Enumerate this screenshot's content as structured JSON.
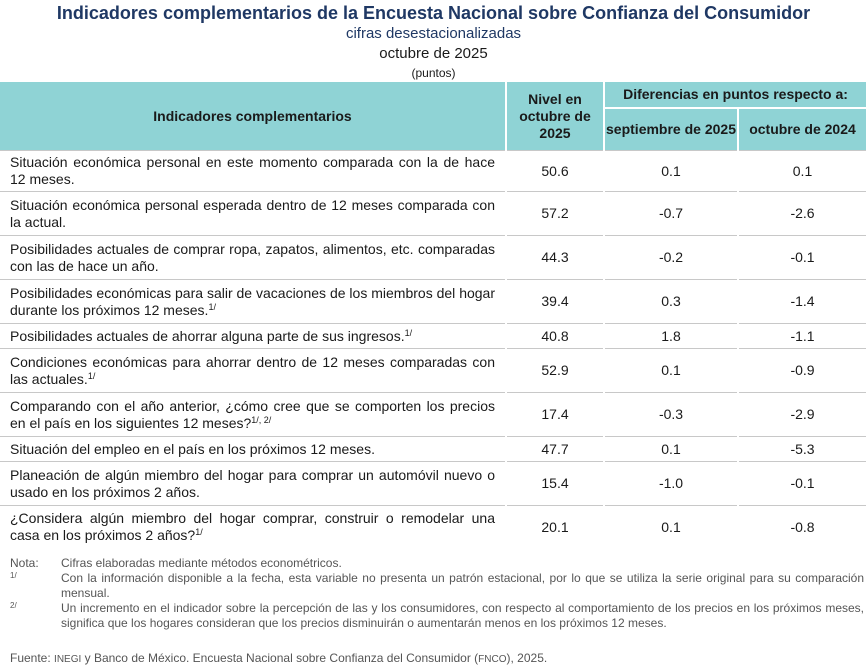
{
  "header": {
    "title": "Indicadores complementarios de la Encuesta Nacional sobre Confianza del Consumidor",
    "subtitle": "cifras desestacionalizadas",
    "period": "octubre de 2025",
    "units": "(puntos)"
  },
  "table": {
    "col_indicators": "Indicadores complementarios",
    "col_level": "Nivel en octubre de 2025",
    "col_diff_group": "Diferencias en puntos respecto a:",
    "col_diff_sep": "septiembre de 2025",
    "col_diff_oct": "octubre de 2024",
    "rows": [
      {
        "label": "Situación económica personal en este momento comparada con la de hace 12 meses.",
        "note": "",
        "level": "50.6",
        "diff_sep": "0.1",
        "diff_oct": "0.1"
      },
      {
        "label": "Situación económica personal esperada dentro de 12 meses comparada con la actual.",
        "note": "",
        "level": "57.2",
        "diff_sep": "-0.7",
        "diff_oct": "-2.6"
      },
      {
        "label": "Posibilidades actuales de comprar ropa, zapatos, alimentos, etc. comparadas con las de hace un año.",
        "note": "",
        "level": "44.3",
        "diff_sep": "-0.2",
        "diff_oct": "-0.1"
      },
      {
        "label": "Posibilidades económicas para salir de vacaciones de los miembros del hogar durante los próximos 12 meses.",
        "note": "1/",
        "level": "39.4",
        "diff_sep": "0.3",
        "diff_oct": "-1.4"
      },
      {
        "label": "Posibilidades actuales de ahorrar alguna parte de sus ingresos.",
        "note": "1/",
        "level": "40.8",
        "diff_sep": "1.8",
        "diff_oct": "-1.1"
      },
      {
        "label": "Condiciones económicas para ahorrar dentro de 12 meses comparadas con las actuales.",
        "note": "1/",
        "level": "52.9",
        "diff_sep": "0.1",
        "diff_oct": "-0.9"
      },
      {
        "label": "Comparando con el año anterior, ¿cómo cree que se comporten los precios en el país en los siguientes 12 meses?",
        "note": "1/, 2/",
        "level": "17.4",
        "diff_sep": "-0.3",
        "diff_oct": "-2.9"
      },
      {
        "label": "Situación del empleo en el país en los próximos 12 meses.",
        "note": "",
        "level": "47.7",
        "diff_sep": "0.1",
        "diff_oct": "-5.3"
      },
      {
        "label": "Planeación de algún miembro del hogar para comprar un automóvil nuevo o usado en los próximos 2 años.",
        "note": "",
        "level": "15.4",
        "diff_sep": "-1.0",
        "diff_oct": "-0.1"
      },
      {
        "label": "¿Considera algún miembro del hogar comprar, construir o remodelar una casa en los próximos 2 años?",
        "note": "1/",
        "level": "20.1",
        "diff_sep": "0.1",
        "diff_oct": "-0.8"
      }
    ]
  },
  "notes": {
    "nota_label": "Nota:",
    "nota_text": "Cifras elaboradas mediante métodos econométricos.",
    "n1_label": "1/",
    "n1_text": "Con la información disponible a la fecha, esta variable no presenta un patrón estacional, por lo que se utiliza la serie original para su comparación mensual.",
    "n2_label": "2/",
    "n2_text": "Un incremento en el indicador sobre la percepción de las y los consumidores, con respecto al comportamiento de los precios en los próximos meses, significa que los hogares consideran que los precios disminuirán o aumentarán menos en los próximos 12 meses."
  },
  "source": {
    "label": "Fuente:",
    "inegi": "INEGI",
    "text1": "y Banco de México. Encuesta Nacional sobre Confianza del Consumidor (",
    "fnco": "FNCO",
    "text2": "), 2025."
  },
  "colors": {
    "header_bg": "#8fd3d5",
    "title": "#1f3864",
    "notes": "#555555"
  }
}
